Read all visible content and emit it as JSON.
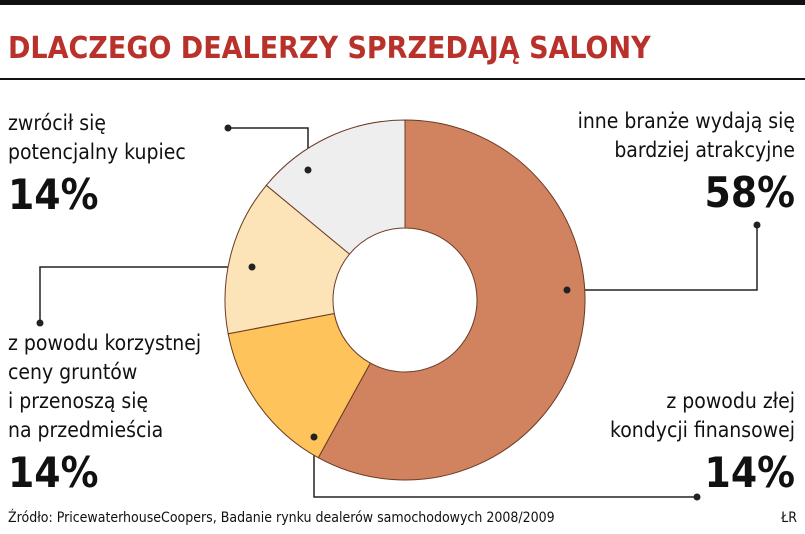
{
  "chart_data": {
    "type": "pie",
    "title": "DLACZEGO DEALERZY SPRZEDAJĄ SALONY",
    "categories": [
      [
        "inne branże wydają się",
        "bardziej atrakcyjne"
      ],
      [
        "z powodu złej",
        "kondycji finansowej"
      ],
      [
        "z powodu korzystnej",
        "ceny gruntów",
        "i przenoszą się",
        "na przedmieścia"
      ],
      [
        "zwrócił się",
        "potencjalny kupiec"
      ]
    ],
    "values": [
      58,
      14,
      14,
      14
    ],
    "value_labels": [
      "58%",
      "14%",
      "14%",
      "14%"
    ],
    "colors": [
      "#d0835e",
      "#fec35a",
      "#fde3b8",
      "#eeeeee"
    ],
    "source": "Źródło: PricewaterhouseCoopers, Badanie rynku dealerów samochodowych 2008/2009",
    "credit": "ŁR"
  }
}
